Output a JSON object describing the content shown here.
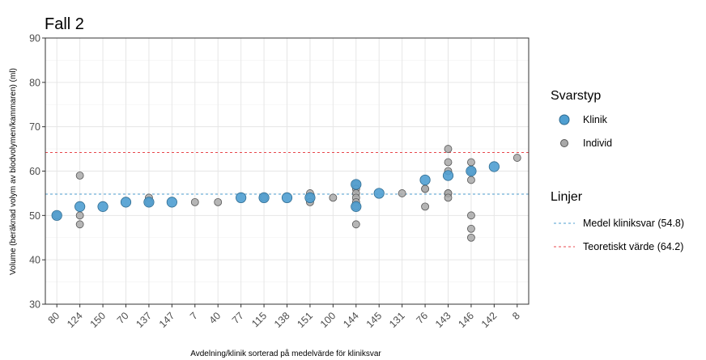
{
  "chart_data": {
    "type": "scatter",
    "title": "Fall 2",
    "xlabel": "Avdelning/klinik sorterad på medelvärde för kliniksvar",
    "ylabel": "Volume (beräknad volym av blodvolymen/kammaren) (ml)",
    "ylim": [
      30,
      90
    ],
    "yticks": [
      30,
      40,
      50,
      60,
      70,
      80,
      90
    ],
    "grid": true,
    "categories": [
      "80",
      "124",
      "150",
      "70",
      "137",
      "147",
      "7",
      "40",
      "77",
      "115",
      "138",
      "151",
      "100",
      "144",
      "145",
      "131",
      "76",
      "143",
      "146",
      "142",
      "8"
    ],
    "series": [
      {
        "name": "Klinik",
        "color": "#4f9fd1",
        "points": [
          [
            "80",
            50
          ],
          [
            "124",
            52
          ],
          [
            "150",
            52
          ],
          [
            "70",
            53
          ],
          [
            "137",
            53
          ],
          [
            "147",
            53
          ],
          [
            "77",
            54
          ],
          [
            "115",
            54
          ],
          [
            "138",
            54
          ],
          [
            "151",
            54
          ],
          [
            "144",
            57
          ],
          [
            "144",
            52
          ],
          [
            "145",
            55
          ],
          [
            "76",
            58
          ],
          [
            "143",
            59
          ],
          [
            "146",
            60
          ],
          [
            "142",
            61
          ]
        ]
      },
      {
        "name": "Individ",
        "color": "#a9a9a9",
        "points": [
          [
            "80",
            50
          ],
          [
            "124",
            59
          ],
          [
            "124",
            50
          ],
          [
            "124",
            48
          ],
          [
            "137",
            54
          ],
          [
            "137",
            53
          ],
          [
            "7",
            53
          ],
          [
            "40",
            53
          ],
          [
            "115",
            54
          ],
          [
            "151",
            55
          ],
          [
            "151",
            54
          ],
          [
            "151",
            53
          ],
          [
            "100",
            54
          ],
          [
            "144",
            57
          ],
          [
            "144",
            56
          ],
          [
            "144",
            55
          ],
          [
            "144",
            54
          ],
          [
            "144",
            53
          ],
          [
            "144",
            52
          ],
          [
            "144",
            48
          ],
          [
            "131",
            55
          ],
          [
            "76",
            56
          ],
          [
            "76",
            56
          ],
          [
            "76",
            52
          ],
          [
            "143",
            65
          ],
          [
            "143",
            62
          ],
          [
            "143",
            60
          ],
          [
            "143",
            55
          ],
          [
            "143",
            55
          ],
          [
            "143",
            54
          ],
          [
            "146",
            62
          ],
          [
            "146",
            60
          ],
          [
            "146",
            58
          ],
          [
            "146",
            50
          ],
          [
            "146",
            47
          ],
          [
            "146",
            45
          ],
          [
            "8",
            63
          ]
        ]
      }
    ],
    "lines": [
      {
        "name": "Medel kliniksvar (54.8)",
        "value": 54.8,
        "color": "#4f9fd1"
      },
      {
        "name": "Teoretiskt värde (64.2)",
        "value": 64.2,
        "color": "#e8474c"
      }
    ],
    "legend": {
      "placement": "right",
      "series_title": "Svarstyp",
      "lines_title": "Linjer"
    }
  }
}
